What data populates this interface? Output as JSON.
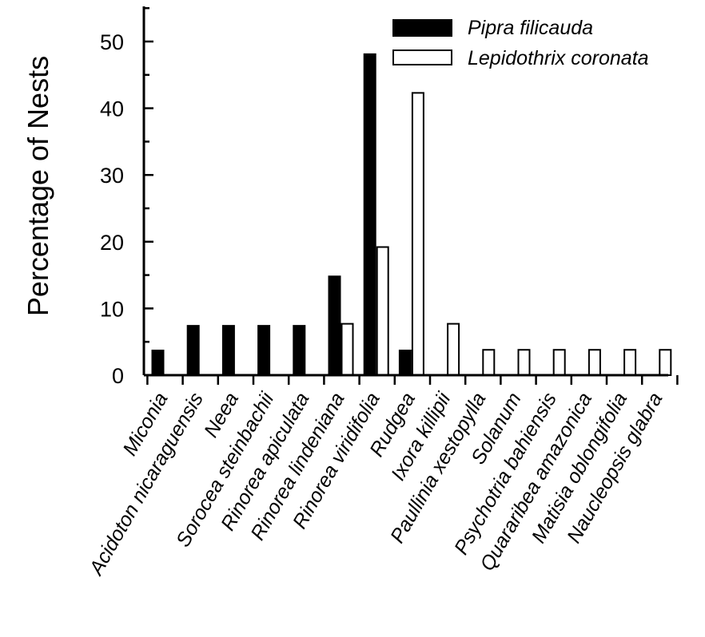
{
  "chart_data": {
    "type": "bar",
    "title": "",
    "xlabel": "",
    "ylabel": "Percentage of Nests",
    "ylim": [
      0,
      55
    ],
    "yticks": [
      0,
      10,
      20,
      30,
      40,
      50
    ],
    "grid": false,
    "legend_position": "top-right",
    "categories": [
      "Miconia",
      "Acidoton nicaraguensis",
      "Neea",
      "Sorocea steinbachii",
      "Rinorea apiculata",
      "Rinorea lindeniana",
      "Rinorea viridifolia",
      "Rudgea",
      "Ixora killipii",
      "Paullinia xestopylla",
      "Solanum",
      "Psychotria bahiensis",
      "Quararibea amazonica",
      "Matisia oblongifolia",
      "Naucleopsis glabra"
    ],
    "series": [
      {
        "name": "Pipra filicauda",
        "color": "#000000",
        "values": [
          3.7,
          7.4,
          7.4,
          7.4,
          7.4,
          14.8,
          48.1,
          3.7,
          0,
          0,
          0,
          0,
          0,
          0,
          0
        ]
      },
      {
        "name": "Lepidothrix coronata",
        "color": "#ffffff",
        "values": [
          0,
          0,
          0,
          0,
          0,
          7.7,
          19.2,
          42.3,
          7.7,
          3.8,
          3.8,
          3.8,
          3.8,
          3.8,
          3.8
        ]
      }
    ]
  }
}
